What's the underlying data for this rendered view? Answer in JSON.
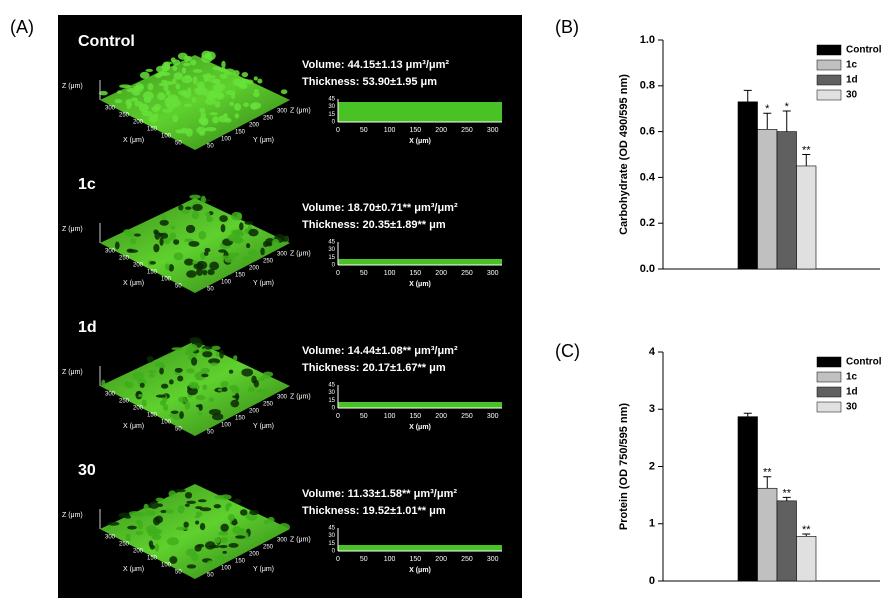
{
  "panel_a": {
    "panel_label": "(A)",
    "z_axis_label": "Z (μm)",
    "x_axis_label": "X (μm)",
    "y_axis_label": "Y (μm)",
    "surface_ticks": [
      300,
      250,
      200,
      150,
      100,
      50,
      0
    ],
    "profile_xticks": [
      0,
      50,
      100,
      150,
      200,
      250,
      300
    ],
    "profile_zticks": [
      45,
      30,
      15,
      0
    ],
    "rows": [
      {
        "label": "Control",
        "volume": "Volume: 44.15±1.13 μm³/μm²",
        "thickness": "Thickness: 53.90±1.95 μm"
      },
      {
        "label": "1c",
        "volume": "Volume: 18.70±0.71** μm³/μm²",
        "thickness": "Thickness: 20.35±1.89** μm"
      },
      {
        "label": "1d",
        "volume": "Volume: 14.44±1.08** μm³/μm²",
        "thickness": "Thickness: 20.17±1.67** μm"
      },
      {
        "label": "30",
        "volume": "Volume: 11.33±1.58** μm³/μm²",
        "thickness": "Thickness: 19.52±1.01** μm"
      }
    ]
  },
  "chart_data": [
    {
      "type": "bar",
      "panel_label": "(B)",
      "y_label": "Carbohydrate (OD 490/595 nm)",
      "ylim": [
        0,
        1
      ],
      "yticks": [
        {
          "value": 0,
          "label": "0.0"
        },
        {
          "value": 0.2,
          "label": "0.2"
        },
        {
          "value": 0.4,
          "label": "0.4"
        },
        {
          "value": 0.6,
          "label": "0.6"
        },
        {
          "value": 0.8,
          "label": "0.8"
        },
        {
          "value": 1,
          "label": "1.0"
        }
      ],
      "legend": "upper right",
      "series": [
        {
          "name": "Control",
          "color": "#000000",
          "values": [
            0.73
          ],
          "errors": [
            0.05
          ]
        },
        {
          "name": "1c",
          "color": "#c0c0c0",
          "values": [
            0.61
          ],
          "errors": [
            0.07
          ],
          "label": "*"
        },
        {
          "name": "1d",
          "color": "#606060",
          "values": [
            0.6
          ],
          "errors": [
            0.09
          ],
          "label": "*"
        },
        {
          "name": "30",
          "color": "#e0e0e0",
          "values": [
            0.45
          ],
          "errors": [
            0.05
          ],
          "label": "**"
        }
      ]
    },
    {
      "type": "bar",
      "panel_label": "(C)",
      "y_label": "Protein (OD 750/595 nm)",
      "ylim": [
        0,
        4
      ],
      "yticks": [
        0,
        1,
        2,
        3,
        4
      ],
      "legend": "upper right",
      "series": [
        {
          "name": "Control",
          "color": "#000000",
          "values": [
            2.87
          ],
          "errors": [
            0.06
          ]
        },
        {
          "name": "1c",
          "color": "#c0c0c0",
          "values": [
            1.62
          ],
          "errors": [
            0.2
          ],
          "label": "**"
        },
        {
          "name": "1d",
          "color": "#606060",
          "values": [
            1.4
          ],
          "errors": [
            0.06
          ],
          "label": "**"
        },
        {
          "name": "30",
          "color": "#e0e0e0",
          "values": [
            0.78
          ],
          "errors": [
            0.04
          ],
          "label": "**"
        }
      ]
    }
  ]
}
